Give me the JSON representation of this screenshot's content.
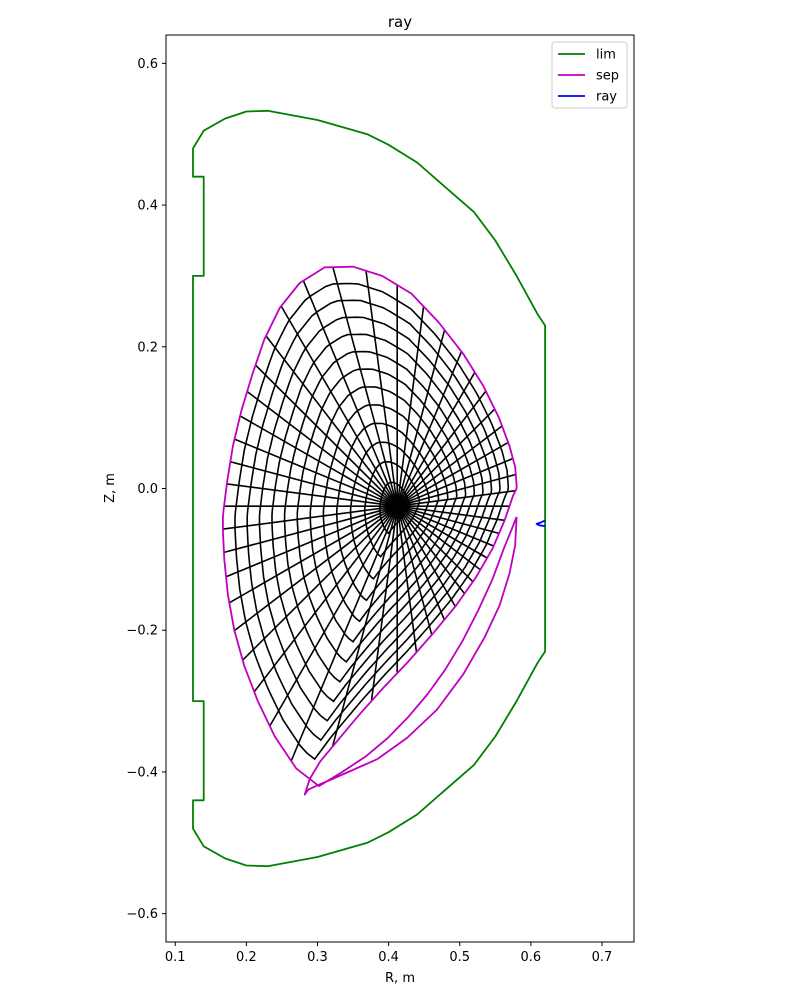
{
  "chart_data": {
    "type": "line",
    "title": "ray",
    "xlabel": "R, m",
    "ylabel": "Z, m",
    "xlim": [
      0.087,
      0.745
    ],
    "ylim": [
      -0.64,
      0.64
    ],
    "xticks": [
      0.1,
      0.2,
      0.3,
      0.4,
      0.5,
      0.6,
      0.7
    ],
    "xtick_labels": [
      "0.1",
      "0.2",
      "0.3",
      "0.4",
      "0.5",
      "0.6",
      "0.7"
    ],
    "yticks": [
      -0.6,
      -0.4,
      -0.2,
      0.0,
      0.2,
      0.4,
      0.6
    ],
    "ytick_labels": [
      "−0.6",
      "−0.4",
      "−0.2",
      "0.0",
      "0.2",
      "0.4",
      "0.6"
    ],
    "legend_position": "top-right",
    "grid": false,
    "series": [
      {
        "name": "lim",
        "color": "#008000",
        "x": [
          0.62,
          0.62,
          0.61,
          0.58,
          0.55,
          0.52,
          0.48,
          0.44,
          0.4,
          0.37,
          0.3,
          0.23,
          0.2,
          0.17,
          0.14,
          0.125,
          0.125,
          0.14,
          0.14,
          0.125,
          0.125,
          0.14,
          0.14,
          0.125,
          0.125,
          0.14,
          0.17,
          0.2,
          0.23,
          0.3,
          0.37,
          0.4,
          0.44,
          0.48,
          0.52,
          0.55,
          0.58,
          0.61,
          0.62,
          0.62
        ],
        "y": [
          0.0,
          0.23,
          0.245,
          0.3,
          0.35,
          0.39,
          0.425,
          0.46,
          0.485,
          0.5,
          0.52,
          0.533,
          0.532,
          0.522,
          0.505,
          0.48,
          0.44,
          0.44,
          0.3,
          0.3,
          -0.3,
          -0.3,
          -0.44,
          -0.44,
          -0.48,
          -0.505,
          -0.522,
          -0.532,
          -0.533,
          -0.52,
          -0.5,
          -0.485,
          -0.46,
          -0.425,
          -0.39,
          -0.35,
          -0.3,
          -0.245,
          -0.23,
          0.0
        ]
      },
      {
        "name": "sep",
        "color": "#bf00bf",
        "x": [
          0.58,
          0.578,
          0.57,
          0.556,
          0.535,
          0.505,
          0.468,
          0.426,
          0.384,
          0.348,
          0.321,
          0.302,
          0.287,
          0.282,
          0.289,
          0.304,
          0.328,
          0.358,
          0.392,
          0.427,
          0.462,
          0.495,
          0.523,
          0.546,
          0.563,
          0.575,
          0.58,
          0.58,
          0.578,
          0.57,
          0.555,
          0.533,
          0.505,
          0.47,
          0.432,
          0.391,
          0.35,
          0.31,
          0.275,
          0.247,
          0.225,
          0.208,
          0.193,
          0.181,
          0.173,
          0.168,
          0.167,
          0.167,
          0.169,
          0.174,
          0.183,
          0.197,
          0.216,
          0.24,
          0.27,
          0.302,
          0.335,
          0.368,
          0.399,
          0.428,
          0.455,
          0.48,
          0.504,
          0.526,
          0.546,
          0.562,
          0.574,
          0.58
        ],
        "y": [
          -0.04,
          -0.08,
          -0.12,
          -0.165,
          -0.21,
          -0.262,
          -0.312,
          -0.352,
          -0.382,
          -0.398,
          -0.41,
          -0.418,
          -0.425,
          -0.432,
          -0.41,
          -0.385,
          -0.356,
          -0.32,
          -0.282,
          -0.245,
          -0.205,
          -0.165,
          -0.125,
          -0.085,
          -0.045,
          -0.01,
          0.0,
          0.005,
          0.03,
          0.06,
          0.1,
          0.145,
          0.19,
          0.235,
          0.275,
          0.3,
          0.313,
          0.312,
          0.29,
          0.255,
          0.21,
          0.16,
          0.11,
          0.06,
          0.01,
          -0.03,
          -0.04,
          -0.06,
          -0.1,
          -0.15,
          -0.2,
          -0.25,
          -0.3,
          -0.35,
          -0.395,
          -0.42,
          -0.4,
          -0.378,
          -0.352,
          -0.322,
          -0.29,
          -0.255,
          -0.215,
          -0.172,
          -0.128,
          -0.085,
          -0.055,
          -0.04
        ]
      },
      {
        "name": "ray",
        "color": "#0000ff",
        "x": [
          0.62,
          0.614,
          0.608,
          0.612,
          0.62
        ],
        "y": [
          -0.045,
          -0.048,
          -0.05,
          -0.052,
          -0.053
        ]
      }
    ],
    "grid_overlay": {
      "color": "#000000",
      "axis_center": [
        0.412,
        -0.025
      ],
      "n_flux_surfaces": 12,
      "n_radial_lines": 48
    }
  }
}
